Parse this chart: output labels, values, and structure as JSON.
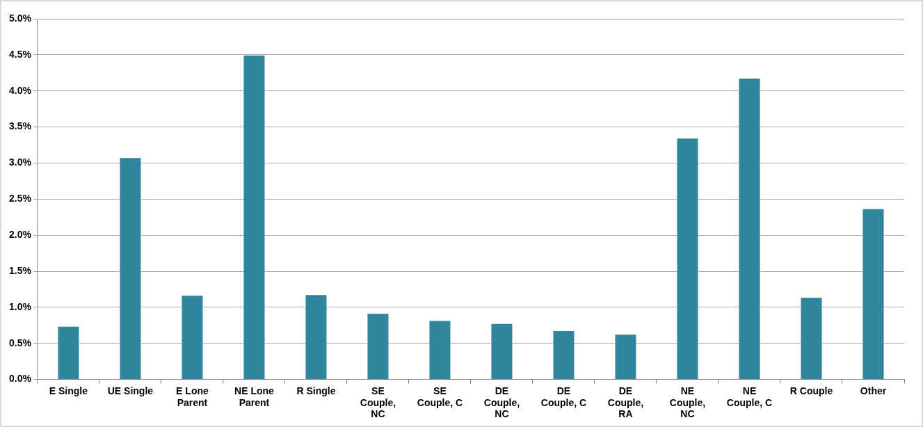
{
  "chart_data": {
    "type": "bar",
    "categories": [
      "E Single",
      "UE Single",
      "E Lone Parent",
      "NE Lone Parent",
      "R Single",
      "SE Couple, NC",
      "SE Couple, C",
      "DE Couple, NC",
      "DE Couple, C",
      "DE Couple, RA",
      "NE Couple, NC",
      "NE Couple, C",
      "R Couple",
      "Other"
    ],
    "values": [
      0.74,
      3.08,
      1.17,
      4.5,
      1.18,
      0.92,
      0.82,
      0.78,
      0.68,
      0.63,
      3.35,
      4.18,
      1.14,
      2.37
    ],
    "color": "#31859c",
    "ylim": [
      0,
      5
    ],
    "yticks": [
      {
        "value": 0,
        "label": "0.0%"
      },
      {
        "value": 0.5,
        "label": "0.5%"
      },
      {
        "value": 1,
        "label": "1.0%"
      },
      {
        "value": 1.5,
        "label": "1.5%"
      },
      {
        "value": 2,
        "label": "2.0%"
      },
      {
        "value": 2.5,
        "label": "2.5%"
      },
      {
        "value": 3,
        "label": "3.0%"
      },
      {
        "value": 3.5,
        "label": "3.5%"
      },
      {
        "value": 4,
        "label": "4.0%"
      },
      {
        "value": 4.5,
        "label": "4.5%"
      },
      {
        "value": 5,
        "label": "5.0%"
      }
    ],
    "grid": "y"
  }
}
